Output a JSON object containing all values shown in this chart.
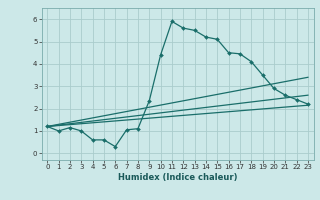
{
  "xlabel": "Humidex (Indice chaleur)",
  "background_color": "#cce8e8",
  "grid_color": "#aacccc",
  "line_color": "#1a6e6a",
  "xlim": [
    -0.5,
    23.5
  ],
  "ylim": [
    -0.3,
    6.5
  ],
  "xticks": [
    0,
    1,
    2,
    3,
    4,
    5,
    6,
    7,
    8,
    9,
    10,
    11,
    12,
    13,
    14,
    15,
    16,
    17,
    18,
    19,
    20,
    21,
    22,
    23
  ],
  "yticks": [
    0,
    1,
    2,
    3,
    4,
    5,
    6
  ],
  "curve1_x": [
    0,
    1,
    2,
    3,
    4,
    5,
    6,
    7,
    8,
    9,
    10,
    11,
    12,
    13,
    14,
    15,
    16,
    17,
    18,
    19,
    20,
    21,
    22,
    23
  ],
  "curve1_y": [
    1.2,
    1.0,
    1.15,
    1.0,
    0.6,
    0.6,
    0.3,
    1.05,
    1.1,
    2.35,
    4.4,
    5.9,
    5.6,
    5.5,
    5.2,
    5.1,
    4.5,
    4.45,
    4.1,
    3.5,
    2.9,
    2.6,
    2.4,
    2.2
  ],
  "curve2_x": [
    0,
    23
  ],
  "curve2_y": [
    1.2,
    2.15
  ],
  "curve3_x": [
    0,
    23
  ],
  "curve3_y": [
    1.2,
    2.6
  ],
  "curve4_x": [
    0,
    23
  ],
  "curve4_y": [
    1.2,
    3.4
  ],
  "tick_fontsize": 5.0,
  "xlabel_fontsize": 6.0
}
